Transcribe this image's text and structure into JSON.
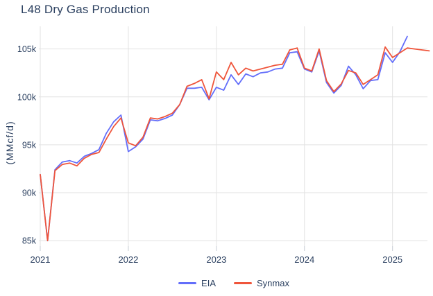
{
  "title": "L48 Dry Gas Production",
  "y_axis_title": "(MMcf/d)",
  "colors": {
    "text": "#2a3f5f",
    "grid": "#e2e2e2",
    "eia_blue": "#636efa",
    "synmax_red": "#ef553b",
    "background": "#ffffff"
  },
  "legend": {
    "items": [
      {
        "label": "EIA",
        "color": "#636efa"
      },
      {
        "label": "Synmax",
        "color": "#ef553b"
      }
    ]
  },
  "chart_data": {
    "type": "line",
    "title": "L48 Dry Gas Production",
    "xlabel": "",
    "ylabel": "(MMcf/d)",
    "grid": true,
    "legend_position": "bottom-center",
    "values_unit": "thousand MMcf/d (k)",
    "ylim_k": [
      84.4,
      107.5
    ],
    "yticks": {
      "values": [
        85,
        90,
        95,
        100,
        105
      ],
      "labels": [
        "85k",
        "90k",
        "95k",
        "100k",
        "105k"
      ]
    },
    "xticks": {
      "labels": [
        "2021",
        "2022",
        "2023",
        "2024",
        "2025"
      ],
      "month_index": [
        0,
        12,
        24,
        36,
        48
      ]
    },
    "x_months": [
      "2021-01",
      "2021-02",
      "2021-03",
      "2021-04",
      "2021-05",
      "2021-06",
      "2021-07",
      "2021-08",
      "2021-09",
      "2021-10",
      "2021-11",
      "2021-12",
      "2022-01",
      "2022-02",
      "2022-03",
      "2022-04",
      "2022-05",
      "2022-06",
      "2022-07",
      "2022-08",
      "2022-09",
      "2022-10",
      "2022-11",
      "2022-12",
      "2023-01",
      "2023-02",
      "2023-03",
      "2023-04",
      "2023-05",
      "2023-06",
      "2023-07",
      "2023-08",
      "2023-09",
      "2023-10",
      "2023-11",
      "2023-12",
      "2024-01",
      "2024-02",
      "2024-03",
      "2024-04",
      "2024-05",
      "2024-06",
      "2024-07",
      "2024-08",
      "2024-09",
      "2024-10",
      "2024-11",
      "2024-12",
      "2025-01",
      "2025-02",
      "2025-03",
      "2025-04",
      "2025-05",
      "2025-06"
    ],
    "series": [
      {
        "name": "EIA",
        "color": "#636efa",
        "values": [
          91.9,
          85.0,
          92.4,
          93.2,
          93.35,
          93.1,
          93.8,
          94.1,
          94.5,
          96.2,
          97.4,
          98.1,
          94.3,
          94.8,
          95.6,
          97.6,
          97.5,
          97.75,
          98.1,
          99.2,
          100.9,
          100.9,
          101.0,
          99.7,
          101.0,
          100.7,
          102.3,
          101.3,
          102.4,
          102.1,
          102.5,
          102.6,
          102.9,
          103.0,
          104.6,
          104.7,
          102.9,
          102.6,
          104.8,
          101.5,
          100.4,
          101.2,
          103.2,
          102.3,
          100.85,
          101.7,
          101.8,
          104.6,
          103.6,
          104.7,
          106.3
        ]
      },
      {
        "name": "Synmax",
        "color": "#ef553b",
        "values": [
          91.9,
          85.0,
          92.3,
          92.95,
          93.1,
          92.8,
          93.6,
          94.0,
          94.2,
          95.6,
          96.9,
          97.8,
          95.2,
          94.9,
          95.8,
          97.8,
          97.7,
          97.95,
          98.3,
          99.2,
          101.1,
          101.4,
          101.8,
          99.8,
          102.6,
          101.8,
          103.6,
          102.3,
          103.0,
          102.7,
          102.9,
          103.1,
          103.3,
          103.4,
          104.9,
          105.1,
          103.0,
          102.7,
          105.0,
          101.7,
          100.55,
          101.35,
          102.75,
          102.5,
          101.3,
          101.8,
          102.3,
          105.2,
          104.1,
          104.6,
          105.1,
          105.0,
          104.9,
          104.8
        ]
      }
    ]
  }
}
